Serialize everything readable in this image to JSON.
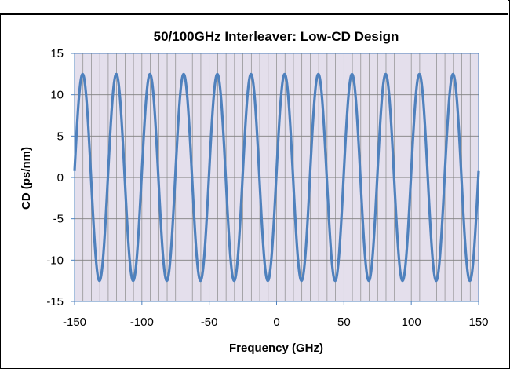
{
  "chart_data": {
    "type": "line",
    "title": "50/100GHz Interleaver: Low-CD Design",
    "xlabel": "Frequency (GHz)",
    "ylabel": "CD (ps/nm)",
    "xlim": [
      -150,
      150
    ],
    "ylim": [
      -15,
      15
    ],
    "x_ticks": [
      "-150",
      "-100",
      "-50",
      "0",
      "50",
      "100",
      "150"
    ],
    "y_ticks": [
      "15",
      "10",
      "5",
      "0",
      "-5",
      "-10",
      "-15"
    ],
    "grid": true,
    "minor_vertical_grid_step_ghz": 6.25,
    "legend": "none",
    "plot_background": "#e4dfec",
    "series": [
      {
        "color": "#4f81bd",
        "shape": "sinusoid",
        "amplitude": 12.5,
        "period_ghz": 25,
        "peak_x": [
          -144,
          -119,
          -94,
          -69,
          -44,
          -19,
          6,
          31,
          56,
          81,
          106,
          131
        ],
        "trough_x": [
          -131.5,
          -106.5,
          -81.5,
          -56.5,
          -31.5,
          -6.5,
          18.5,
          43.5,
          68.5,
          93.5,
          118.5,
          143.5
        ]
      }
    ]
  }
}
